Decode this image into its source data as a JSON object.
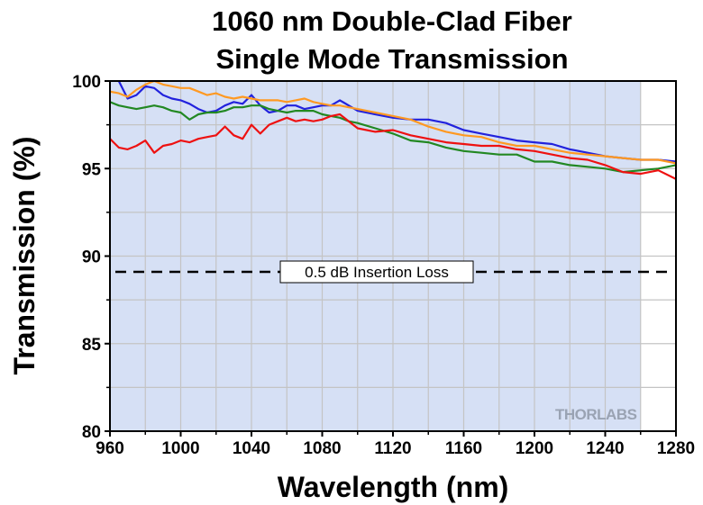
{
  "chart_data": {
    "type": "line",
    "title": "1060 nm Double-Clad Fiber",
    "subtitle": "Single Mode Transmission",
    "xlabel": "Wavelength (nm)",
    "ylabel": "Transmission (%)",
    "xlim": [
      960,
      1280
    ],
    "ylim": [
      80,
      100
    ],
    "xticks": [
      960,
      1000,
      1040,
      1080,
      1120,
      1160,
      1200,
      1240,
      1280
    ],
    "yticks": [
      80,
      85,
      90,
      95,
      100
    ],
    "grid": true,
    "shaded_region": {
      "x": [
        960,
        1260
      ],
      "color": "#d6e0f5"
    },
    "reference_line": {
      "y": 89.1,
      "label": "0.5 dB Insertion Loss",
      "style": "dashed"
    },
    "logo_text": "THORLABS",
    "series": [
      {
        "color": "#2222dd",
        "x": [
          960,
          965,
          970,
          975,
          980,
          985,
          990,
          995,
          1000,
          1005,
          1010,
          1015,
          1020,
          1025,
          1030,
          1035,
          1040,
          1045,
          1050,
          1055,
          1060,
          1065,
          1070,
          1075,
          1080,
          1085,
          1090,
          1095,
          1100,
          1110,
          1120,
          1130,
          1140,
          1150,
          1160,
          1170,
          1180,
          1190,
          1200,
          1210,
          1220,
          1230,
          1240,
          1250,
          1260,
          1270,
          1280
        ],
        "y": [
          100.2,
          100.0,
          99.0,
          99.2,
          99.7,
          99.6,
          99.2,
          99.0,
          98.9,
          98.7,
          98.4,
          98.2,
          98.3,
          98.6,
          98.8,
          98.7,
          99.2,
          98.6,
          98.2,
          98.3,
          98.6,
          98.6,
          98.4,
          98.5,
          98.6,
          98.6,
          98.9,
          98.6,
          98.3,
          98.1,
          97.9,
          97.8,
          97.8,
          97.6,
          97.2,
          97.0,
          96.8,
          96.6,
          96.5,
          96.4,
          96.1,
          95.9,
          95.7,
          95.6,
          95.5,
          95.5,
          95.4
        ]
      },
      {
        "color": "#ff9922",
        "x": [
          960,
          965,
          970,
          975,
          980,
          985,
          990,
          995,
          1000,
          1005,
          1010,
          1015,
          1020,
          1025,
          1030,
          1035,
          1040,
          1045,
          1050,
          1055,
          1060,
          1065,
          1070,
          1075,
          1080,
          1085,
          1090,
          1095,
          1100,
          1110,
          1120,
          1130,
          1140,
          1150,
          1160,
          1170,
          1180,
          1190,
          1200,
          1210,
          1220,
          1230,
          1240,
          1250,
          1260,
          1270,
          1280
        ],
        "y": [
          99.4,
          99.3,
          99.1,
          99.5,
          99.8,
          100.0,
          99.8,
          99.7,
          99.6,
          99.6,
          99.4,
          99.2,
          99.3,
          99.1,
          99.0,
          99.1,
          99.0,
          98.9,
          98.9,
          98.9,
          98.8,
          98.9,
          99.0,
          98.8,
          98.7,
          98.6,
          98.6,
          98.5,
          98.4,
          98.2,
          98.0,
          97.8,
          97.4,
          97.1,
          96.9,
          96.8,
          96.5,
          96.3,
          96.3,
          96.1,
          95.9,
          95.8,
          95.7,
          95.6,
          95.5,
          95.5,
          95.3
        ]
      },
      {
        "color": "#228822",
        "x": [
          960,
          965,
          970,
          975,
          980,
          985,
          990,
          995,
          1000,
          1005,
          1010,
          1015,
          1020,
          1025,
          1030,
          1035,
          1040,
          1045,
          1050,
          1055,
          1060,
          1065,
          1070,
          1075,
          1080,
          1085,
          1090,
          1095,
          1100,
          1110,
          1120,
          1130,
          1140,
          1150,
          1160,
          1170,
          1180,
          1190,
          1200,
          1210,
          1220,
          1230,
          1240,
          1250,
          1260,
          1270,
          1280
        ],
        "y": [
          98.8,
          98.6,
          98.5,
          98.4,
          98.5,
          98.6,
          98.5,
          98.3,
          98.2,
          97.8,
          98.1,
          98.2,
          98.2,
          98.3,
          98.5,
          98.5,
          98.6,
          98.6,
          98.4,
          98.3,
          98.2,
          98.3,
          98.3,
          98.3,
          98.1,
          98.0,
          97.9,
          97.7,
          97.6,
          97.3,
          97.0,
          96.6,
          96.5,
          96.2,
          96.0,
          95.9,
          95.8,
          95.8,
          95.4,
          95.4,
          95.2,
          95.1,
          95.0,
          94.8,
          94.9,
          95.0,
          95.2
        ]
      },
      {
        "color": "#ee1111",
        "x": [
          960,
          965,
          970,
          975,
          980,
          985,
          990,
          995,
          1000,
          1005,
          1010,
          1015,
          1020,
          1025,
          1030,
          1035,
          1040,
          1045,
          1050,
          1055,
          1060,
          1065,
          1070,
          1075,
          1080,
          1085,
          1090,
          1095,
          1100,
          1110,
          1120,
          1130,
          1140,
          1150,
          1160,
          1170,
          1180,
          1190,
          1200,
          1210,
          1220,
          1230,
          1240,
          1250,
          1260,
          1270,
          1280
        ],
        "y": [
          96.7,
          96.2,
          96.1,
          96.3,
          96.6,
          95.9,
          96.3,
          96.4,
          96.6,
          96.5,
          96.7,
          96.8,
          96.9,
          97.4,
          96.9,
          96.7,
          97.5,
          97.0,
          97.5,
          97.7,
          97.9,
          97.7,
          97.8,
          97.7,
          97.8,
          98.0,
          98.1,
          97.7,
          97.3,
          97.1,
          97.2,
          96.9,
          96.7,
          96.5,
          96.4,
          96.3,
          96.3,
          96.1,
          96.0,
          95.8,
          95.6,
          95.5,
          95.2,
          94.8,
          94.7,
          94.9,
          94.4
        ]
      }
    ]
  }
}
